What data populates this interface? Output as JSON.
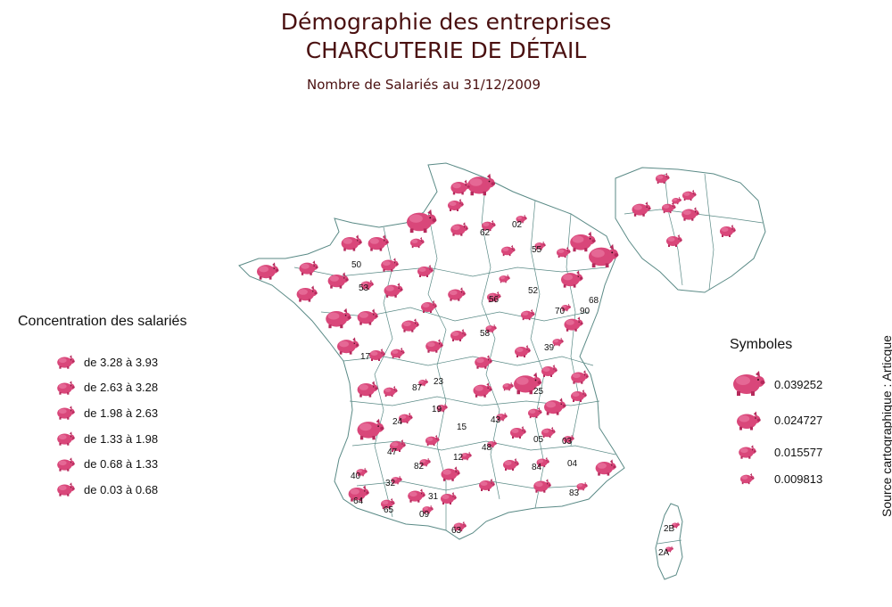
{
  "title_line1": "Démographie des entreprises",
  "title_line2": "CHARCUTERIE DE DÉTAIL",
  "subtitle": "Nombre de Salariés au 31/12/2009",
  "concentration_legend": {
    "title": "Concentration des salariés",
    "items": [
      "de 3.28 à 3.93",
      "de 2.63 à 3.28",
      "de 1.98 à 2.63",
      "de 1.33 à 1.98",
      "de 0.68 à 1.33",
      "de 0.03 à 0.68"
    ]
  },
  "symbol_legend": {
    "title": "Symboles",
    "items": [
      "0.039252",
      "0.024727",
      "0.015577",
      "0.009813"
    ]
  },
  "source": "Source cartographique : Articque",
  "department_labels": [
    "53",
    "52",
    "68",
    "70",
    "90",
    "23",
    "87",
    "19",
    "15",
    "43",
    "48",
    "03",
    "04",
    "84",
    "83",
    "05",
    "82",
    "32",
    "47",
    "40",
    "09",
    "63",
    "2B",
    "2A",
    "55",
    "02",
    "62",
    "58",
    "39",
    "12",
    "25",
    "24",
    "50",
    "56",
    "17",
    "64",
    "31",
    "65"
  ],
  "colors": {
    "pig": "#d9477a",
    "pig_dark": "#b52a5c",
    "border": "#5a8a86",
    "title": "#4a1010"
  }
}
